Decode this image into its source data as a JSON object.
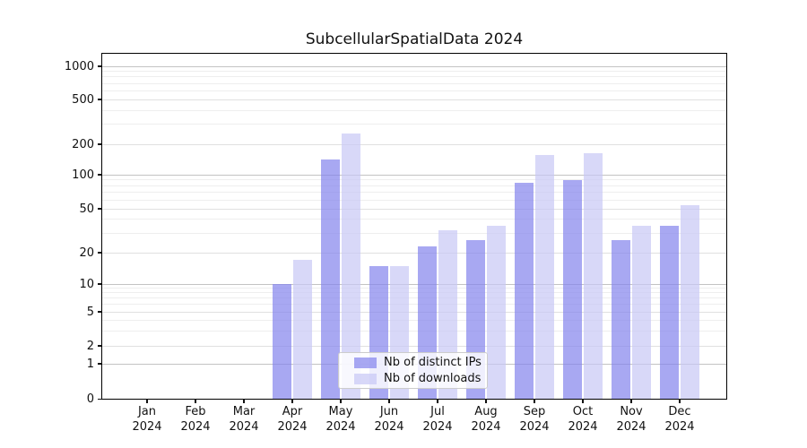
{
  "window": {
    "background": "#ffffff"
  },
  "chart_data": {
    "type": "bar",
    "title": "SubcellularSpatialData 2024",
    "categories": [
      {
        "month": "Jan",
        "year": "2024"
      },
      {
        "month": "Feb",
        "year": "2024"
      },
      {
        "month": "Mar",
        "year": "2024"
      },
      {
        "month": "Apr",
        "year": "2024"
      },
      {
        "month": "May",
        "year": "2024"
      },
      {
        "month": "Jun",
        "year": "2024"
      },
      {
        "month": "Jul",
        "year": "2024"
      },
      {
        "month": "Aug",
        "year": "2024"
      },
      {
        "month": "Sep",
        "year": "2024"
      },
      {
        "month": "Oct",
        "year": "2024"
      },
      {
        "month": "Nov",
        "year": "2024"
      },
      {
        "month": "Dec",
        "year": "2024"
      }
    ],
    "series": [
      {
        "name": "Nb of distinct IPs",
        "color": "#8383ed",
        "values": [
          0,
          0,
          0,
          10,
          140,
          15,
          23,
          26,
          85,
          90,
          26,
          35
        ]
      },
      {
        "name": "Nb of downloads",
        "color": "#c7c7f5",
        "values": [
          0,
          0,
          0,
          17,
          250,
          15,
          32,
          35,
          158,
          163,
          35,
          54
        ]
      }
    ],
    "bar_alpha": 0.7,
    "y_axis": {
      "scale": "symlog",
      "ticks": [
        0,
        1,
        2,
        5,
        10,
        20,
        50,
        100,
        200,
        500,
        1000
      ],
      "ylim": [
        0,
        1400
      ]
    },
    "grid": {
      "major": [
        1,
        10,
        100,
        1000
      ],
      "sub": [
        2,
        5,
        20,
        50,
        200,
        500
      ],
      "minor": [
        3,
        4,
        6,
        7,
        8,
        9,
        30,
        40,
        60,
        70,
        80,
        90,
        300,
        400,
        600,
        700,
        800,
        900
      ]
    },
    "legend": {
      "position": "lower center"
    }
  }
}
